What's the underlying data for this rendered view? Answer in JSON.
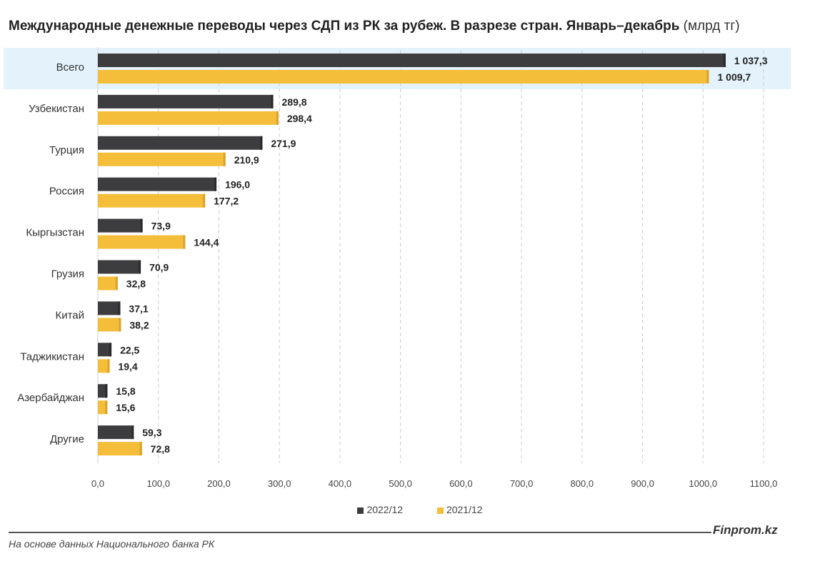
{
  "header": {
    "title": "Международные денежные переводы через СДП из РК за рубеж. В разрезе стран. Январь–декабрь",
    "unit": "(млрд тг)"
  },
  "footer": {
    "brand": "Finprom.kz",
    "source": "На основе данных Национального банка РК"
  },
  "colors": {
    "series_2022": "#3d3d3f",
    "series_2021": "#f4be3a",
    "highlight": "#e3f2fb",
    "grid": "#cccccc"
  },
  "chart_data": {
    "type": "bar",
    "orientation": "horizontal",
    "categories": [
      "Всего",
      "Узбекистан",
      "Турция",
      "Россия",
      "Кыргызстан",
      "Грузия",
      "Китай",
      "Таджикистан",
      "Азербайджан",
      "Другие"
    ],
    "series": [
      {
        "name": "2022/12",
        "values": [
          1037.3,
          289.8,
          271.9,
          196.0,
          73.9,
          70.9,
          37.1,
          22.5,
          15.8,
          59.3
        ]
      },
      {
        "name": "2021/12",
        "values": [
          1009.7,
          298.4,
          210.9,
          177.2,
          144.4,
          32.8,
          38.2,
          19.4,
          15.6,
          72.8
        ]
      }
    ],
    "value_labels": [
      [
        "1 037,3",
        "289,8",
        "271,9",
        "196,0",
        "73,9",
        "70,9",
        "37,1",
        "22,5",
        "15,8",
        "59,3"
      ],
      [
        "1 009,7",
        "298,4",
        "210,9",
        "177,2",
        "144,4",
        "32,8",
        "38,2",
        "19,4",
        "15,6",
        "72,8"
      ]
    ],
    "xlim": [
      0,
      1100
    ],
    "xticks": [
      0,
      100,
      200,
      300,
      400,
      500,
      600,
      700,
      800,
      900,
      1000,
      1100
    ],
    "xtick_labels": [
      "0,0",
      "100,0",
      "200,0",
      "300,0",
      "400,0",
      "500,0",
      "600,0",
      "700,0",
      "800,0",
      "900,0",
      "1000,0",
      "1100,0"
    ],
    "grid": "vertical-dashed",
    "legend_position": "bottom",
    "highlighted_category": "Всего"
  }
}
